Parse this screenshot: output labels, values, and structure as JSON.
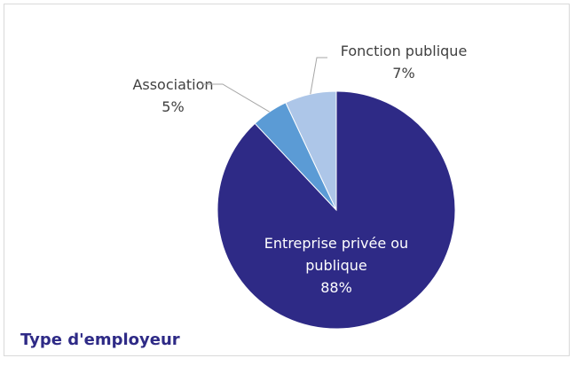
{
  "chart_data": {
    "type": "pie",
    "title": "Type d'employeur",
    "slices": [
      {
        "label": "Entreprise privée ou publique",
        "value": 88,
        "display": "88%",
        "color": "#2e2a86"
      },
      {
        "label": "Association",
        "value": 5,
        "display": "5%",
        "color": "#5b9bd5"
      },
      {
        "label": "Fonction publique",
        "value": 7,
        "display": "7%",
        "color": "#adc6e8"
      }
    ],
    "legend": "none",
    "data_labels": true
  }
}
